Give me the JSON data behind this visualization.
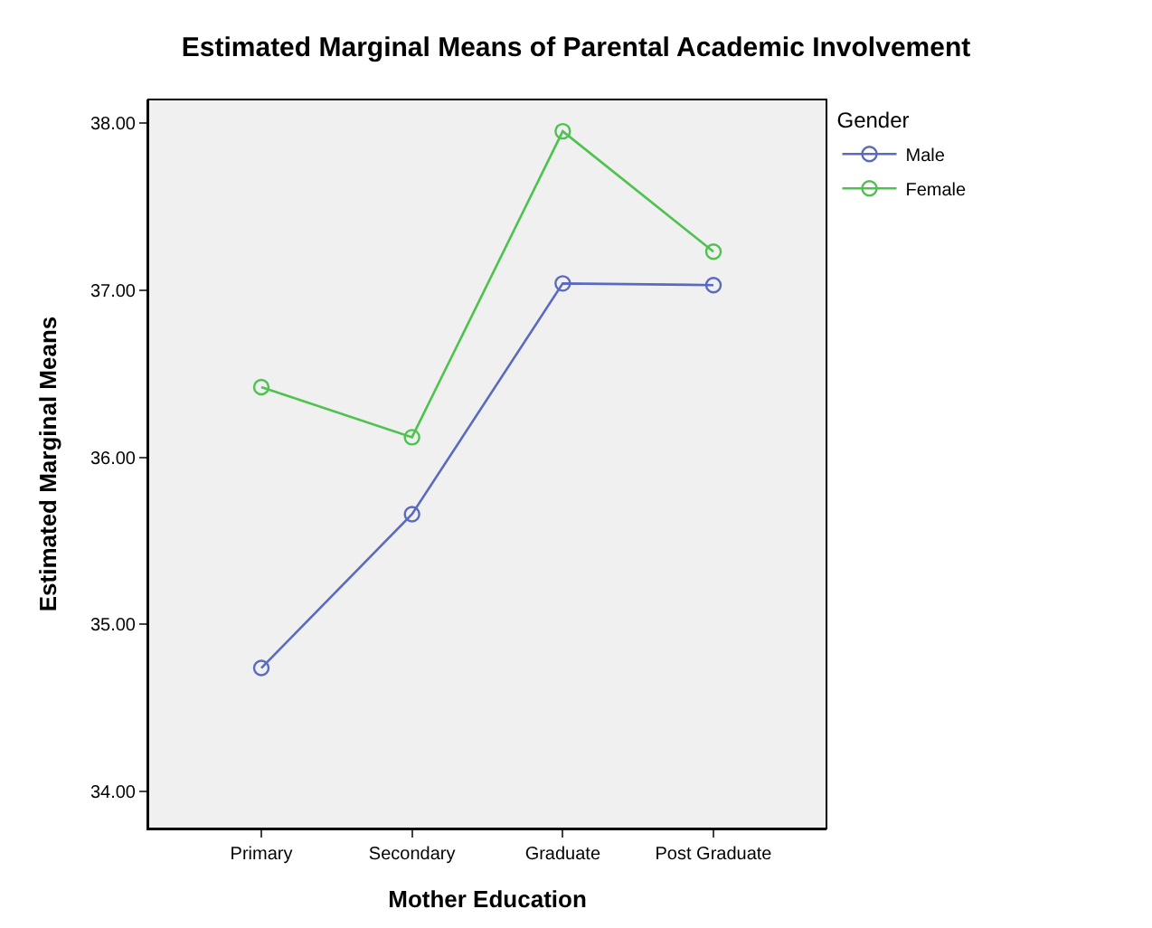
{
  "chart_data": {
    "type": "line",
    "title": "Estimated Marginal Means of Parental Academic Involvement",
    "xlabel": "Mother Education",
    "ylabel": "Estimated Marginal Means",
    "legend_title": "Gender",
    "categories": [
      "Primary",
      "Secondary",
      "Graduate",
      "Post Graduate"
    ],
    "series": [
      {
        "name": "Male",
        "color": "#5a6abf",
        "values": [
          34.74,
          35.66,
          37.04,
          37.03
        ]
      },
      {
        "name": "Female",
        "color": "#4ec24e",
        "values": [
          36.42,
          36.12,
          37.95,
          37.23
        ]
      }
    ],
    "ylim": [
      33.78,
      38.14
    ],
    "yticks": [
      {
        "value": 34,
        "label": "34.00"
      },
      {
        "value": 35,
        "label": "35.00"
      },
      {
        "value": 36,
        "label": "36.00"
      },
      {
        "value": 37,
        "label": "37.00"
      },
      {
        "value": 38,
        "label": "38.00"
      }
    ],
    "grid": false,
    "legend": "top right",
    "marker": "circle",
    "line_style": "solid"
  }
}
